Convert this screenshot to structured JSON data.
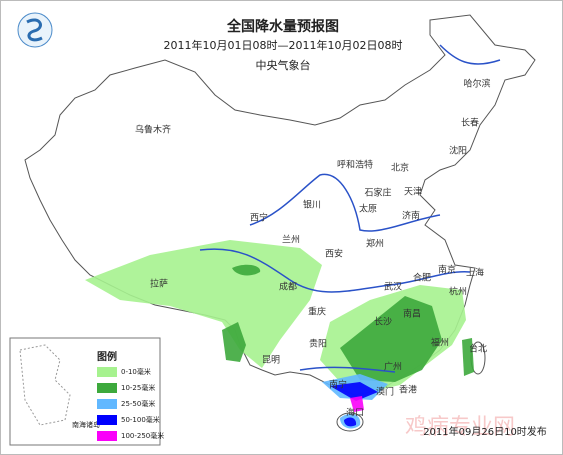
{
  "header": {
    "title": "全国降水量预报图",
    "period": "2011年10月01日08时—2011年10月02日08时",
    "issuer": "中央气象台"
  },
  "cities": [
    {
      "label": "哈尔滨"
    },
    {
      "label": "长春"
    },
    {
      "label": "乌鲁木齐"
    },
    {
      "label": "沈阳"
    },
    {
      "label": "呼和浩特"
    },
    {
      "label": "北京"
    },
    {
      "label": "天津"
    },
    {
      "label": "石家庄"
    },
    {
      "label": "银川"
    },
    {
      "label": "太原"
    },
    {
      "label": "济南"
    },
    {
      "label": "西宁"
    },
    {
      "label": "兰州"
    },
    {
      "label": "郑州"
    },
    {
      "label": "西安"
    },
    {
      "label": "南京"
    },
    {
      "label": "合肥"
    },
    {
      "label": "上海"
    },
    {
      "label": "拉萨"
    },
    {
      "label": "成都"
    },
    {
      "label": "武汉"
    },
    {
      "label": "杭州"
    },
    {
      "label": "重庆"
    },
    {
      "label": "长沙"
    },
    {
      "label": "南昌"
    },
    {
      "label": "贵阳"
    },
    {
      "label": "福州"
    },
    {
      "label": "台北"
    },
    {
      "label": "昆明"
    },
    {
      "label": "广州"
    },
    {
      "label": "南宁"
    },
    {
      "label": "香港"
    },
    {
      "label": "澳门"
    },
    {
      "label": "海口"
    }
  ],
  "legend": {
    "title": "图例",
    "inset_label": "南海诸岛",
    "items": [
      {
        "label": "0-10毫米",
        "color": "#a6f28f"
      },
      {
        "label": "10-25毫米",
        "color": "#3da93c"
      },
      {
        "label": "25-50毫米",
        "color": "#61b8ff"
      },
      {
        "label": "50-100毫米",
        "color": "#0000fe"
      },
      {
        "label": "100-250毫米",
        "color": "#fa00fa"
      }
    ]
  },
  "footer": {
    "published": "2011年09月26日10时发布",
    "watermark": "鸡病专业网"
  }
}
